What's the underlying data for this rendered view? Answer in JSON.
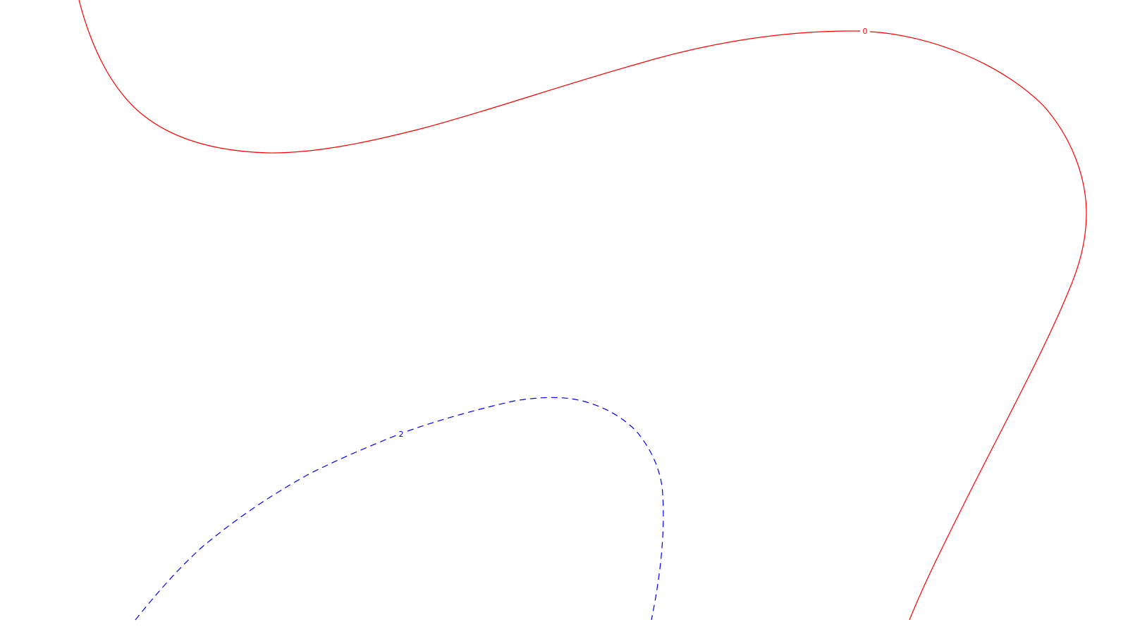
{
  "contours": [
    {
      "id": "contour-0",
      "level_label": "0",
      "style": "solid",
      "color": "#ff0000"
    },
    {
      "id": "contour-2",
      "level_label": "2",
      "style": "dashed",
      "color": "#0000ff"
    }
  ]
}
